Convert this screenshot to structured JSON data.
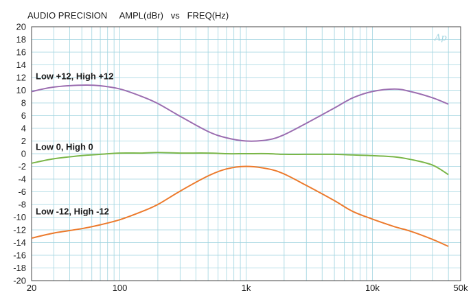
{
  "chart_data": {
    "type": "line",
    "title": "AUDIO PRECISION     AMPL(dBr)   vs   FREQ(Hz)",
    "logo_text": "Ap",
    "x_scale": "log",
    "xlim": [
      20,
      50000
    ],
    "ylim": [
      -20,
      20
    ],
    "grid": true,
    "y_ticks": [
      "20",
      "18",
      "16",
      "14",
      "12",
      "10",
      "8",
      "6",
      "4",
      "2",
      "0",
      "-2",
      "-4",
      "-6",
      "-8",
      "-10",
      "-12",
      "-14",
      "-16",
      "-18",
      "-20"
    ],
    "y_tick_values": [
      20,
      18,
      16,
      14,
      12,
      10,
      8,
      6,
      4,
      2,
      0,
      -2,
      -4,
      -6,
      -8,
      -10,
      -12,
      -14,
      -16,
      -18,
      -20
    ],
    "x_ticks": [
      "20",
      "100",
      "1k",
      "10k",
      "50k"
    ],
    "x_tick_values": [
      20,
      100,
      1000,
      10000,
      50000
    ],
    "colors": {
      "grid": "#9ed3df",
      "frame": "#444444"
    },
    "series": [
      {
        "name": "Low +12, High +12",
        "color": "#9b6db0",
        "label_at": [
          20,
          12.2
        ],
        "x": [
          20,
          30,
          50,
          70,
          100,
          150,
          200,
          300,
          500,
          700,
          1000,
          1500,
          2000,
          3000,
          5000,
          7000,
          10000,
          15000,
          20000,
          30000,
          40000
        ],
        "y": [
          9.8,
          10.5,
          10.8,
          10.7,
          10.2,
          9.0,
          7.9,
          5.9,
          3.5,
          2.5,
          2.0,
          2.2,
          3.0,
          4.8,
          7.2,
          8.8,
          9.8,
          10.2,
          9.8,
          8.8,
          7.8
        ]
      },
      {
        "name": "Low 0, High 0",
        "color": "#7ab648",
        "label_at": [
          20,
          1.1
        ],
        "x": [
          20,
          30,
          50,
          70,
          100,
          150,
          200,
          300,
          500,
          700,
          1000,
          1500,
          2000,
          3000,
          5000,
          7000,
          10000,
          15000,
          20000,
          30000,
          40000
        ],
        "y": [
          -1.5,
          -0.8,
          -0.3,
          -0.1,
          0.1,
          0.1,
          0.2,
          0.1,
          0.1,
          0.0,
          0.0,
          0.0,
          -0.1,
          -0.1,
          -0.1,
          -0.2,
          -0.3,
          -0.5,
          -0.9,
          -1.8,
          -3.3
        ]
      },
      {
        "name": "Low -12, High -12",
        "color": "#ec7a2c",
        "label_at": [
          20,
          -9.1
        ],
        "x": [
          20,
          30,
          50,
          70,
          100,
          150,
          200,
          300,
          500,
          700,
          1000,
          1500,
          2000,
          3000,
          5000,
          7000,
          10000,
          15000,
          20000,
          30000,
          40000
        ],
        "y": [
          -13.3,
          -12.5,
          -11.8,
          -11.2,
          -10.4,
          -9.1,
          -8.0,
          -5.9,
          -3.5,
          -2.4,
          -2.0,
          -2.4,
          -3.2,
          -5.0,
          -7.4,
          -9.1,
          -10.3,
          -11.5,
          -12.2,
          -13.5,
          -14.6
        ]
      }
    ]
  }
}
